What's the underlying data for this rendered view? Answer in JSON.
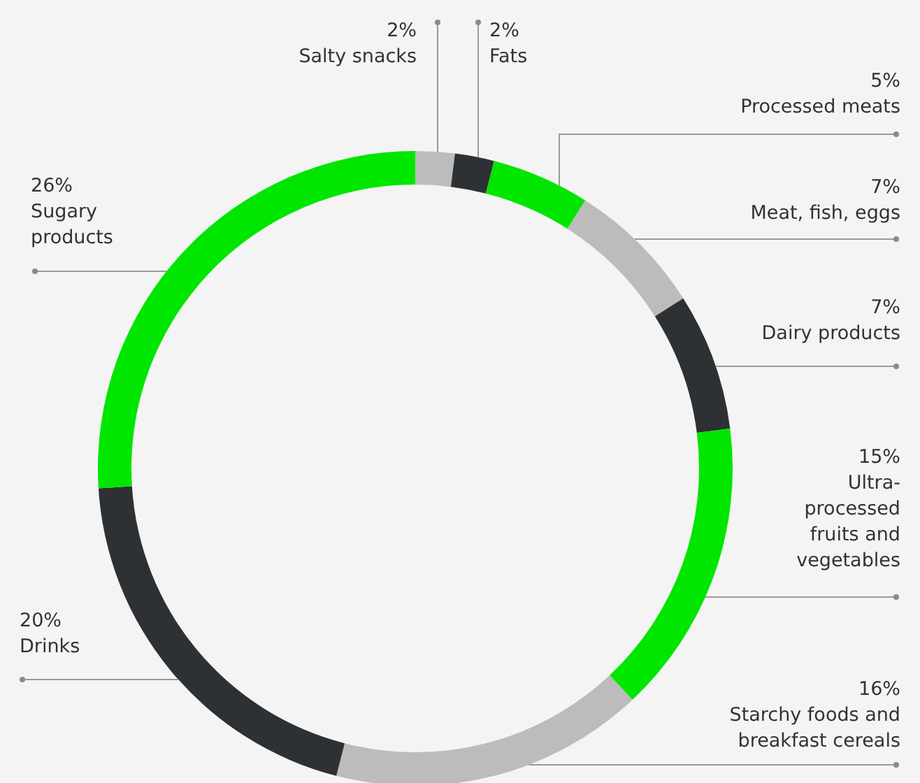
{
  "chart_data": {
    "type": "donut",
    "categories": [
      "Salty snacks",
      "Fats",
      "Processed meats",
      "Meat, fish, eggs",
      "Dairy products",
      "Ultra-processed fruits and vegetables",
      "Starchy foods and breakfast cereals",
      "Drinks",
      "Sugary products"
    ],
    "values": [
      2,
      2,
      5,
      7,
      7,
      15,
      16,
      20,
      26
    ],
    "value_labels": [
      "2%",
      "2%",
      "5%",
      "7%",
      "7%",
      "15%",
      "16%",
      "20%",
      "26%"
    ],
    "colors": [
      "#bcbcbc",
      "#2e3133",
      "#00e600",
      "#bcbcbc",
      "#2e3133",
      "#00e600",
      "#bcbcbc",
      "#2e3133",
      "#00e600"
    ]
  }
}
